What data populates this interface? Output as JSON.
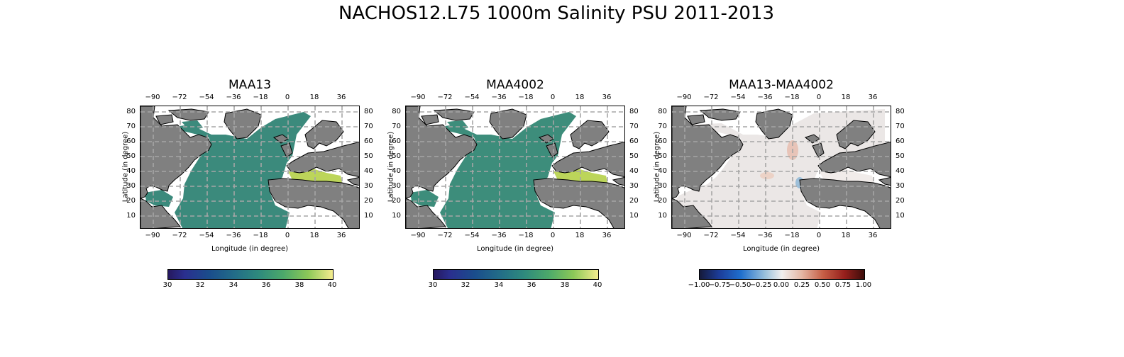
{
  "title": "NACHOS12.L75 1000m Salinity PSU 2011-2013",
  "axes": {
    "xlabel": "Longitude (in degree)",
    "ylabel": "Latitude (in degree)",
    "xticks": [
      "−90",
      "−72",
      "−54",
      "−36",
      "−18",
      "0",
      "18",
      "36"
    ],
    "yticks": [
      "80",
      "70",
      "60",
      "50",
      "40",
      "30",
      "20",
      "10"
    ]
  },
  "colors": {
    "land": "#808080",
    "ocean_missing": "#ffffff",
    "salinity_open_ocean": "#3b8a7c",
    "salinity_mediterranean": "#bcd55a",
    "diff_neutral": "#ebe7e6"
  },
  "panels": [
    {
      "title": "MAA13",
      "colorbar_ticks": [
        "30",
        "32",
        "34",
        "36",
        "38",
        "40"
      ]
    },
    {
      "title": "MAA4002",
      "colorbar_ticks": [
        "30",
        "32",
        "34",
        "36",
        "38",
        "40"
      ]
    },
    {
      "title": "MAA13-MAA4002",
      "colorbar_ticks": [
        "−1.00",
        "−0.75",
        "−0.50",
        "−0.25",
        "0.00",
        "0.25",
        "0.50",
        "0.75",
        "1.00"
      ]
    }
  ]
}
